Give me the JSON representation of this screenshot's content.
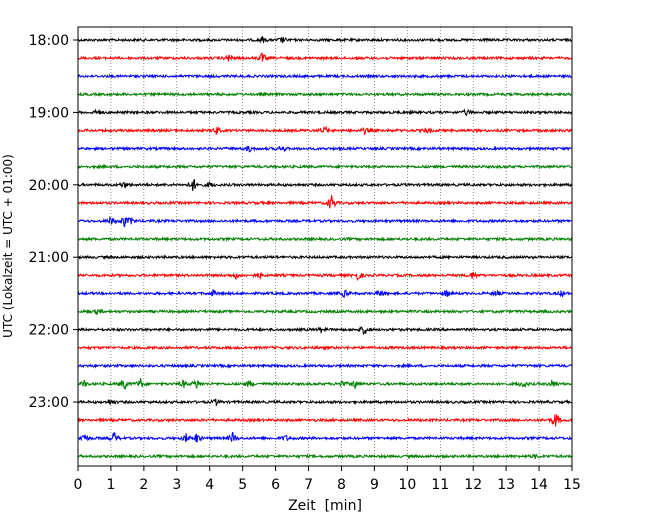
{
  "chart_data": {
    "type": "line",
    "title": "",
    "xlabel": "Zeit  [min]",
    "ylabel": "UTC (Lokalzeit = UTC + 01:00)",
    "xlim": [
      0,
      15
    ],
    "x_ticks": [
      0,
      1,
      2,
      3,
      4,
      5,
      6,
      7,
      8,
      9,
      10,
      11,
      12,
      13,
      14,
      15
    ],
    "x_tick_labels": [
      "0",
      "1",
      "2",
      "3",
      "4",
      "5",
      "6",
      "7",
      "8",
      "9",
      "10",
      "11",
      "12",
      "13",
      "14",
      "15"
    ],
    "y_tick_labels": [
      "18:00",
      "19:00",
      "20:00",
      "21:00",
      "22:00",
      "23:00"
    ],
    "vertical_gridlines": "dotted",
    "trace_interval_min": 15,
    "trace_colors": [
      "#000000",
      "#ff0000",
      "#0000ff",
      "#008000"
    ],
    "traces": [
      {
        "start": "18:00",
        "color": "#000000",
        "events": [
          {
            "t": 5.6,
            "amp": 3
          },
          {
            "t": 6.2,
            "amp": 3
          }
        ]
      },
      {
        "start": "18:15",
        "color": "#ff0000",
        "events": [
          {
            "t": 4.6,
            "amp": 4
          },
          {
            "t": 5.6,
            "amp": 5
          }
        ]
      },
      {
        "start": "18:30",
        "color": "#0000ff",
        "events": []
      },
      {
        "start": "18:45",
        "color": "#008000",
        "events": []
      },
      {
        "start": "19:00",
        "color": "#000000",
        "events": [
          {
            "t": 0.6,
            "amp": 3
          },
          {
            "t": 11.8,
            "amp": 3
          }
        ]
      },
      {
        "start": "19:15",
        "color": "#ff0000",
        "events": [
          {
            "t": 4.2,
            "amp": 4
          },
          {
            "t": 7.5,
            "amp": 4
          },
          {
            "t": 8.7,
            "amp": 3
          },
          {
            "t": 10.6,
            "amp": 3
          }
        ]
      },
      {
        "start": "19:30",
        "color": "#0000ff",
        "events": [
          {
            "t": 5.2,
            "amp": 3
          },
          {
            "t": 6.2,
            "amp": 3
          }
        ]
      },
      {
        "start": "19:45",
        "color": "#008000",
        "events": []
      },
      {
        "start": "20:00",
        "color": "#000000",
        "events": [
          {
            "t": 1.4,
            "amp": 3
          },
          {
            "t": 3.5,
            "amp": 7
          },
          {
            "t": 4.0,
            "amp": 3
          }
        ]
      },
      {
        "start": "20:15",
        "color": "#ff0000",
        "events": [
          {
            "t": 7.7,
            "amp": 9
          }
        ]
      },
      {
        "start": "20:30",
        "color": "#0000ff",
        "events": [
          {
            "t": 1.0,
            "amp": 4
          },
          {
            "t": 1.4,
            "amp": 6
          },
          {
            "t": 1.6,
            "amp": 4
          }
        ]
      },
      {
        "start": "20:45",
        "color": "#008000",
        "events": []
      },
      {
        "start": "21:00",
        "color": "#000000",
        "events": []
      },
      {
        "start": "21:15",
        "color": "#ff0000",
        "events": [
          {
            "t": 4.8,
            "amp": 3
          },
          {
            "t": 5.5,
            "amp": 3
          },
          {
            "t": 8.5,
            "amp": 5
          },
          {
            "t": 12.0,
            "amp": 4
          }
        ]
      },
      {
        "start": "21:30",
        "color": "#0000ff",
        "events": [
          {
            "t": 4.1,
            "amp": 3
          },
          {
            "t": 8.1,
            "amp": 4
          },
          {
            "t": 9.2,
            "amp": 4
          },
          {
            "t": 11.2,
            "amp": 4
          },
          {
            "t": 12.7,
            "amp": 3
          },
          {
            "t": 14.7,
            "amp": 3
          }
        ]
      },
      {
        "start": "21:45",
        "color": "#008000",
        "events": [
          {
            "t": 0.6,
            "amp": 3
          }
        ]
      },
      {
        "start": "22:00",
        "color": "#000000",
        "events": [
          {
            "t": 7.4,
            "amp": 3
          },
          {
            "t": 8.7,
            "amp": 6
          }
        ]
      },
      {
        "start": "22:15",
        "color": "#ff0000",
        "events": []
      },
      {
        "start": "22:30",
        "color": "#0000ff",
        "events": []
      },
      {
        "start": "22:45",
        "color": "#008000",
        "events": [
          {
            "t": 0.2,
            "amp": 3
          },
          {
            "t": 1.4,
            "amp": 7
          },
          {
            "t": 1.9,
            "amp": 5
          },
          {
            "t": 3.2,
            "amp": 4
          },
          {
            "t": 3.6,
            "amp": 5
          },
          {
            "t": 5.2,
            "amp": 4
          },
          {
            "t": 8.0,
            "amp": 4
          },
          {
            "t": 8.4,
            "amp": 5
          },
          {
            "t": 13.5,
            "amp": 4
          },
          {
            "t": 14.4,
            "amp": 4
          }
        ]
      },
      {
        "start": "23:00",
        "color": "#000000",
        "events": [
          {
            "t": 1.0,
            "amp": 3
          },
          {
            "t": 4.2,
            "amp": 3
          }
        ]
      },
      {
        "start": "23:15",
        "color": "#ff0000",
        "events": [
          {
            "t": 14.5,
            "amp": 9
          }
        ]
      },
      {
        "start": "23:30",
        "color": "#0000ff",
        "events": [
          {
            "t": 0.2,
            "amp": 6
          },
          {
            "t": 1.1,
            "amp": 6
          },
          {
            "t": 3.3,
            "amp": 5
          },
          {
            "t": 3.6,
            "amp": 5
          },
          {
            "t": 4.7,
            "amp": 6
          },
          {
            "t": 6.3,
            "amp": 3
          }
        ]
      },
      {
        "start": "23:45",
        "color": "#008000",
        "events": [
          {
            "t": 13.9,
            "amp": 2
          }
        ]
      }
    ]
  }
}
